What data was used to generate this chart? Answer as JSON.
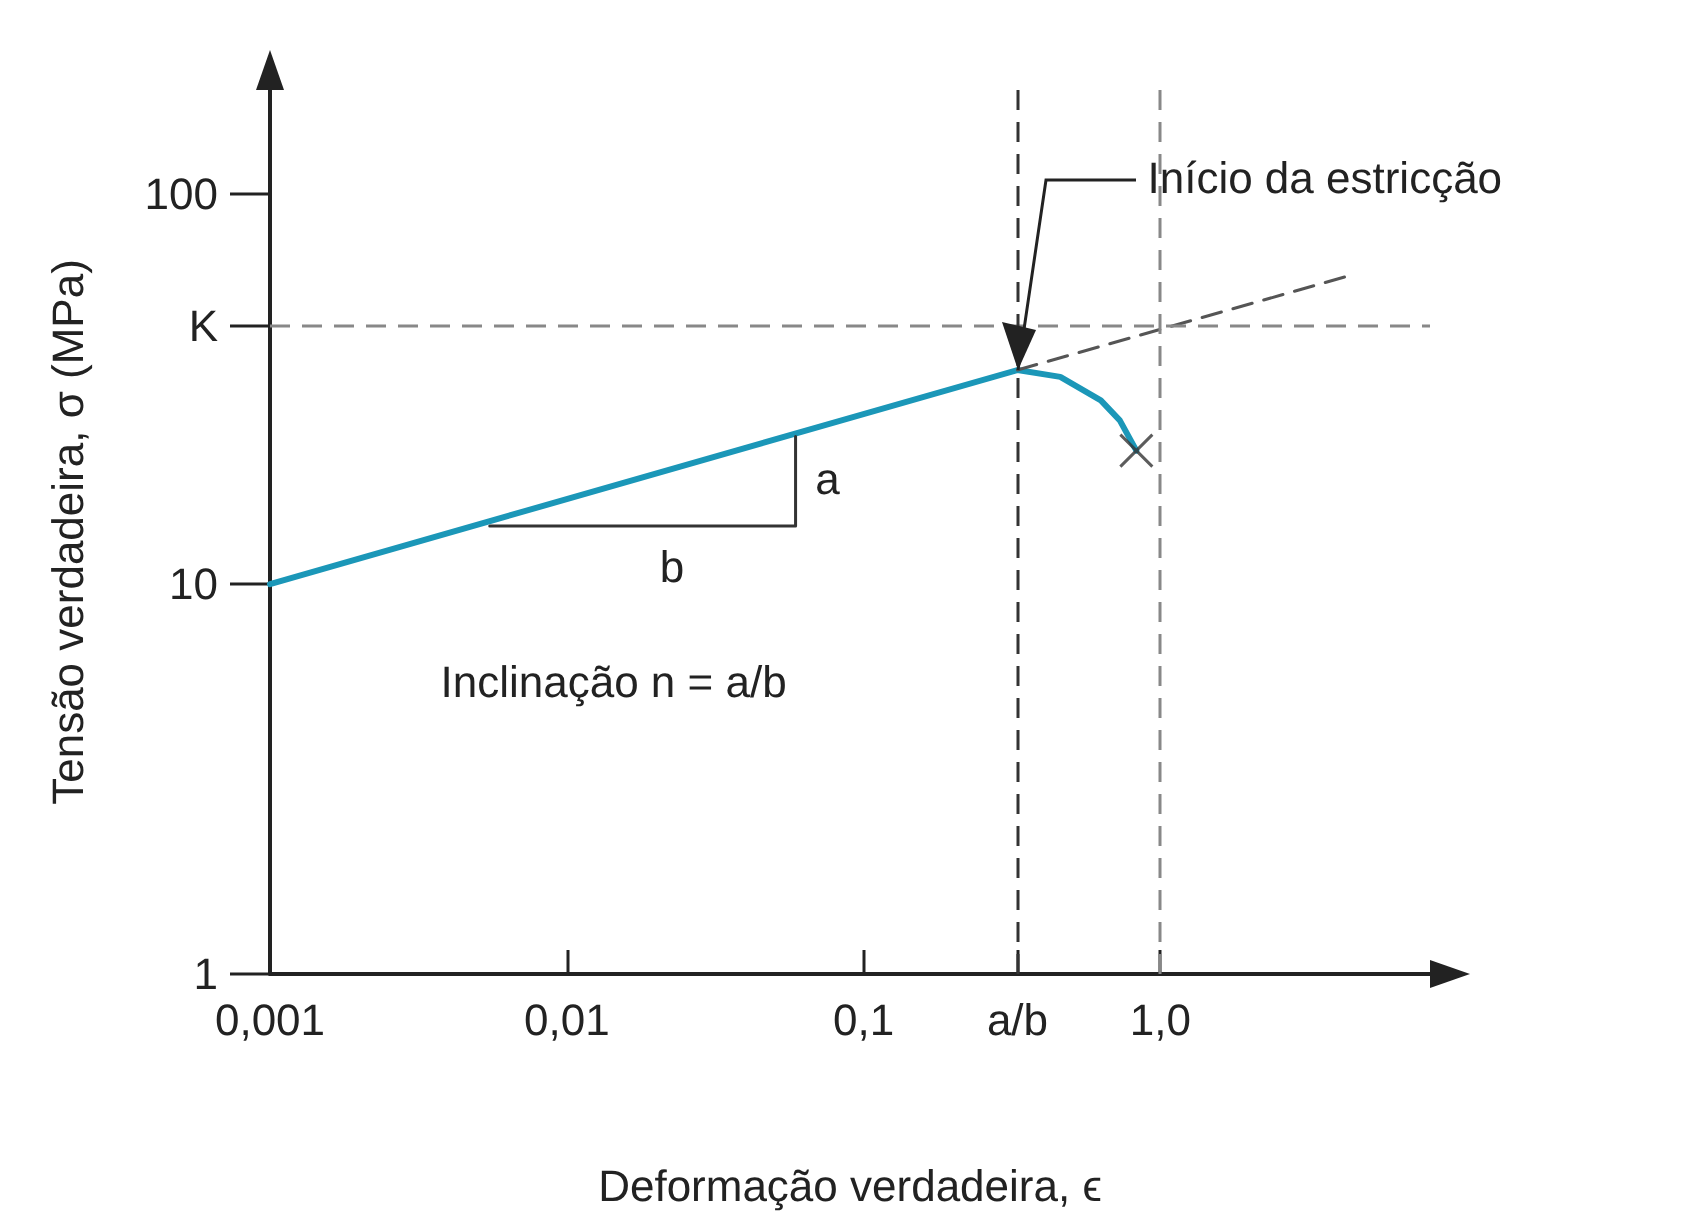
{
  "chart_data": {
    "type": "line",
    "xlabel": "Deformação verdadeira, ϵ",
    "ylabel": "Tensão verdadeira, σ (MPa)",
    "log": "xy",
    "grid": false,
    "marker": "none",
    "line_style": "solid",
    "xlim": [
      0.001,
      8.1
    ],
    "xticks": [
      {
        "value": 0.001,
        "label": "0,001"
      },
      {
        "value": 0.01,
        "label": "0,01"
      },
      {
        "value": 0.1,
        "label": "0,1"
      },
      {
        "value": 0.33,
        "label": "a/b"
      },
      {
        "value": 1,
        "label": "1,0"
      }
    ],
    "ylim": [
      1,
      185
    ],
    "yticks": [
      1,
      10,
      {
        "value": 45.9,
        "label": "K"
      },
      100
    ],
    "series": [
      {
        "color": "#1b97b8",
        "x": [
          0.001,
          0.33,
          0.46,
          0.63,
          0.73,
          0.83
        ],
        "values": [
          10,
          35.4,
          34,
          29.6,
          26.3,
          22
        ]
      },
      {
        "color": "#555555",
        "line_style": "dashed",
        "x": [
          0.33,
          4.4
        ],
        "values": [
          35.4,
          62
        ]
      },
      {
        "color": "#333333",
        "x": [
          0.0055,
          0.059,
          0.059
        ],
        "values": [
          14.1,
          14.1,
          23.9
        ]
      },
      {
        "type": "scatter",
        "marker": "cross",
        "color": "#333333",
        "x": [
          0.83
        ],
        "values": [
          22
        ]
      }
    ],
    "ref_lines": [
      {
        "axis": "y",
        "value": 45.9,
        "color": "#888888",
        "line_style": "dashed"
      },
      {
        "axis": "x",
        "value": 1,
        "color": "#888888",
        "line_style": "dashed"
      },
      {
        "axis": "x",
        "value": 0.33,
        "color": "#333333",
        "line_style": "dashed"
      }
    ],
    "annotations": [
      {
        "text": "Início da estricção",
        "x": 0.33,
        "y": 35.4
      },
      "a",
      "b",
      "Inclinação n = a/b"
    ]
  }
}
